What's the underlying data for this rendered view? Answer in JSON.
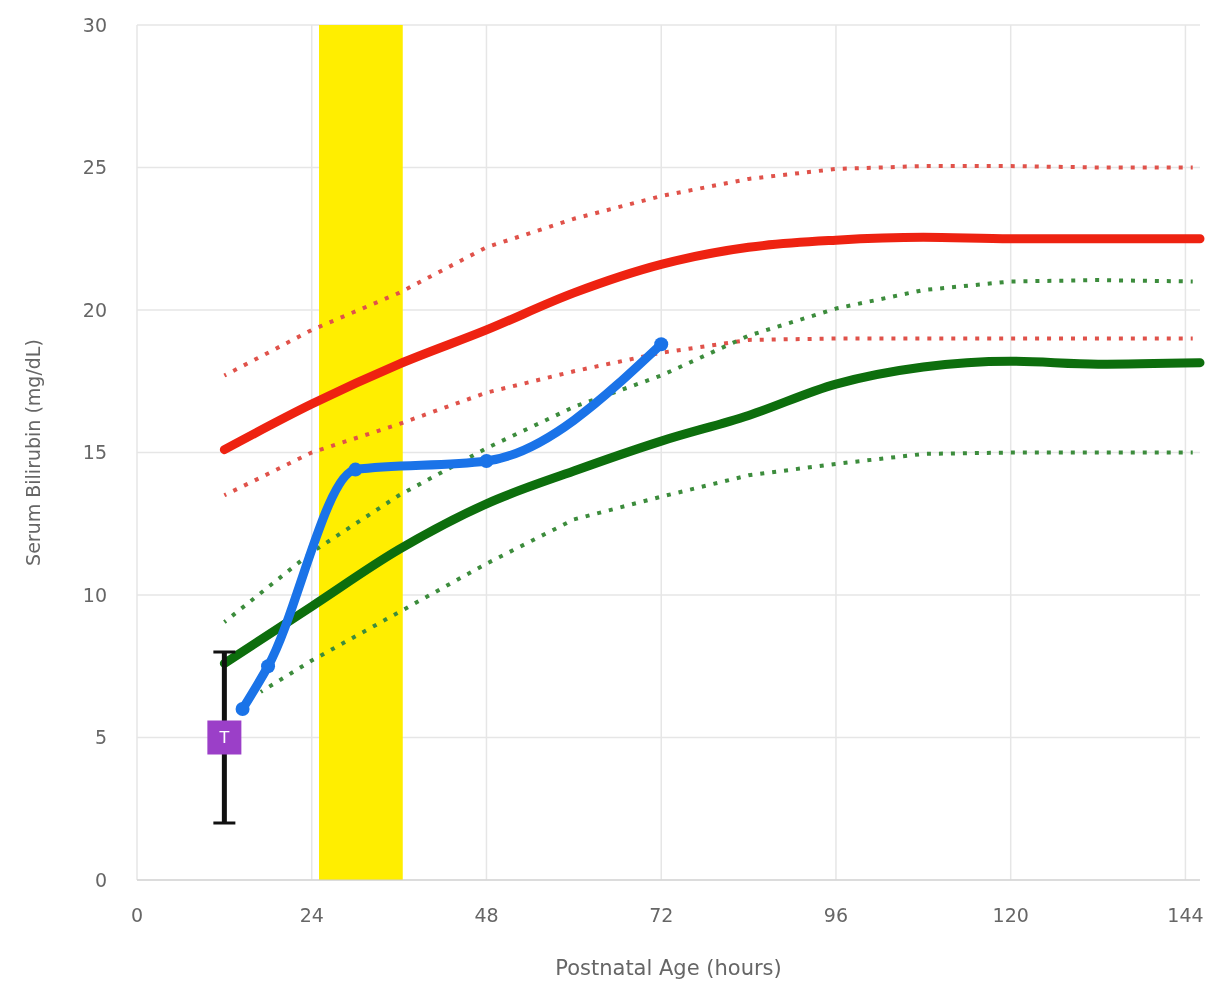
{
  "chart_data": {
    "type": "line",
    "xlabel": "Postnatal Age (hours)",
    "ylabel": "Serum Bilirubin (mg/dL)",
    "xlim": [
      0,
      146
    ],
    "xticks": [
      0,
      24,
      48,
      72,
      96,
      120,
      144
    ],
    "ylim": [
      0,
      30
    ],
    "yticks": [
      0,
      5,
      10,
      15,
      20,
      25,
      30
    ],
    "grid": true,
    "bands": [
      {
        "axis": "x",
        "from": 25,
        "to": 36.5,
        "color": "#ffee00"
      }
    ],
    "series": [
      {
        "color": "#e0524a",
        "line_style": "dotted",
        "marker": "none",
        "x": [
          12,
          24,
          36,
          48,
          60,
          72,
          84,
          96,
          108,
          120,
          132,
          145
        ],
        "values": [
          17.7,
          19.3,
          20.6,
          22.2,
          23.2,
          24.0,
          24.6,
          24.95,
          25.05,
          25.05,
          25.0,
          25.0
        ]
      },
      {
        "color": "#e0524a",
        "line_style": "dotted",
        "marker": "none",
        "x": [
          12,
          24,
          36,
          48,
          60,
          72,
          84,
          96,
          108,
          120,
          132,
          145
        ],
        "values": [
          13.5,
          15.0,
          16.0,
          17.1,
          17.85,
          18.5,
          18.95,
          19.0,
          19.0,
          19.0,
          19.0,
          19.0
        ]
      },
      {
        "color": "#3c8c3c",
        "line_style": "dotted",
        "marker": "none",
        "x": [
          12,
          24,
          36,
          48,
          60,
          72,
          84,
          96,
          108,
          120,
          132,
          145
        ],
        "values": [
          9.05,
          11.5,
          13.5,
          15.15,
          16.6,
          17.7,
          19.1,
          20.05,
          20.7,
          21.0,
          21.05,
          21.0
        ]
      },
      {
        "color": "#3c8c3c",
        "line_style": "dotted",
        "marker": "none",
        "x": [
          17,
          24,
          36,
          48,
          60,
          72,
          84,
          96,
          108,
          120,
          132,
          145
        ],
        "values": [
          6.6,
          7.7,
          9.4,
          11.1,
          12.65,
          13.45,
          14.2,
          14.6,
          14.95,
          15.0,
          15.0,
          15.0
        ]
      },
      {
        "color": "#ee2211",
        "line_style": "solid",
        "marker": "none",
        "x": [
          12,
          24,
          36,
          48,
          60,
          72,
          84,
          96,
          108,
          120,
          132,
          146
        ],
        "values": [
          15.1,
          16.7,
          18.1,
          19.3,
          20.6,
          21.6,
          22.2,
          22.45,
          22.55,
          22.5,
          22.5,
          22.5
        ]
      },
      {
        "color": "#0d6e0d",
        "line_style": "solid",
        "marker": "none",
        "x": [
          12,
          24,
          36,
          48,
          60,
          72,
          84,
          96,
          108,
          120,
          132,
          146
        ],
        "values": [
          7.6,
          9.6,
          11.6,
          13.2,
          14.35,
          15.4,
          16.3,
          17.4,
          18.0,
          18.2,
          18.1,
          18.15
        ]
      },
      {
        "color": "#1a73e8",
        "line_style": "solid",
        "marker": "circle",
        "x": [
          14.5,
          18,
          30,
          48,
          72
        ],
        "values": [
          6.0,
          7.5,
          14.4,
          14.7,
          18.8
        ]
      },
      {
        "type": "scatter",
        "color": "#9b3fc8",
        "marker": "square",
        "x": [
          12
        ],
        "values": [
          5
        ],
        "errors": [
          3
        ]
      }
    ],
    "annotations": [
      {
        "text": "T",
        "x": 12,
        "y": 5
      }
    ]
  }
}
